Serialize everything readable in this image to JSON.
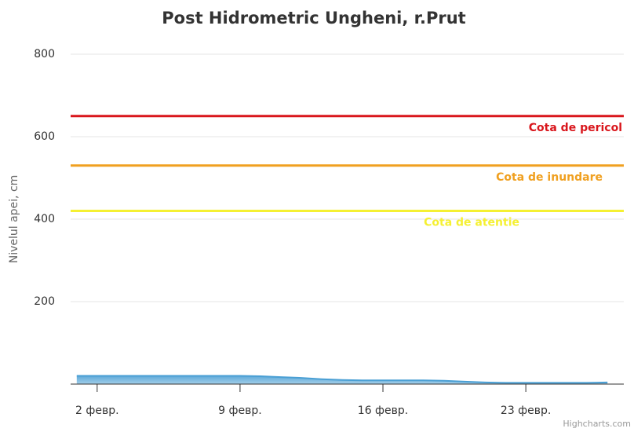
{
  "chart_data": {
    "type": "area",
    "title": "Post Hidrometric Ungheni, r.Prut",
    "y_label": "Nivelul apei, cm",
    "credits": "Highcharts.com",
    "x": [
      1,
      2,
      3,
      4,
      5,
      6,
      7,
      8,
      9,
      10,
      11,
      12,
      13,
      14,
      15,
      16,
      17,
      18,
      19,
      20,
      21,
      22,
      23,
      24,
      25,
      26,
      27
    ],
    "series": [
      {
        "color": "#4a9fd4",
        "values": [
          20,
          20,
          20,
          20,
          20,
          20,
          20,
          20,
          20,
          19,
          17,
          15,
          12,
          10,
          9,
          9,
          9,
          9,
          8,
          6,
          4,
          3,
          3,
          3,
          3,
          3,
          4
        ]
      }
    ],
    "xlim": [
      0.7,
      27.8
    ],
    "xticks": [
      {
        "value": 2,
        "label": "2 февр."
      },
      {
        "value": 9,
        "label": "9 февр."
      },
      {
        "value": 16,
        "label": "16 февр."
      },
      {
        "value": 23,
        "label": "23 февр."
      }
    ],
    "ylim": [
      0,
      800
    ],
    "yticks": [
      200,
      400,
      600,
      800
    ],
    "grid": true,
    "plot_lines": [
      {
        "value": 650,
        "label": "Cota de pericol",
        "color": "#d9161c"
      },
      {
        "value": 530,
        "label": "Cota de inundare",
        "color": "#f0a020"
      },
      {
        "value": 420,
        "label": "Cota de atentie",
        "color": "#f5f032"
      }
    ]
  }
}
